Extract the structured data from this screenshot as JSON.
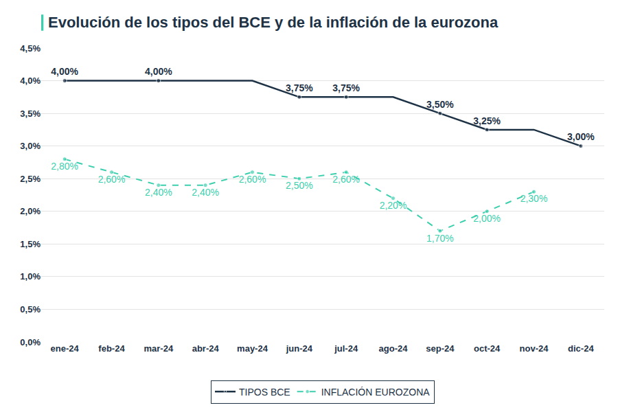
{
  "chart_data": {
    "type": "line",
    "title": "Evolución de los tipos del BCE y de la inflación de la eurozona",
    "categories": [
      "ene-24",
      "feb-24",
      "mar-24",
      "abr-24",
      "may-24",
      "jun-24",
      "jul-24",
      "ago-24",
      "sep-24",
      "oct-24",
      "nov-24",
      "dic-24"
    ],
    "series": [
      {
        "name": "TIPOS BCE",
        "color": "#1e3246",
        "line_style": "solid",
        "marker": "circle",
        "values": [
          4.0,
          4.0,
          4.0,
          4.0,
          4.0,
          3.75,
          3.75,
          3.75,
          3.5,
          3.25,
          3.25,
          3.0
        ],
        "value_labels": [
          "4,00%",
          null,
          "4,00%",
          null,
          null,
          "3,75%",
          "3,75%",
          null,
          "3,50%",
          "3,25%",
          null,
          "3,00%"
        ]
      },
      {
        "name": "INFLACIÓN EUROZONA",
        "color": "#3ccfae",
        "line_style": "dashed",
        "marker": "circle",
        "values": [
          2.8,
          2.6,
          2.4,
          2.4,
          2.6,
          2.5,
          2.6,
          2.2,
          1.7,
          2.0,
          2.3,
          null
        ],
        "value_labels": [
          "2,80%",
          "2,60%",
          "2,40%",
          "2,40%",
          "2,60%",
          "2,50%",
          "2,60%",
          "2,20%",
          "1,70%",
          "2,00%",
          "2,30%",
          null
        ]
      }
    ],
    "ylim": [
      0,
      4.5
    ],
    "yticks": [
      {
        "value": 0,
        "label": "0,0%"
      },
      {
        "value": 0.5,
        "label": "0,5%"
      },
      {
        "value": 1,
        "label": "1,0%"
      },
      {
        "value": 1.5,
        "label": "1,5%"
      },
      {
        "value": 2,
        "label": "2,0%"
      },
      {
        "value": 2.5,
        "label": "2,5%"
      },
      {
        "value": 3,
        "label": "3,0%"
      },
      {
        "value": 3.5,
        "label": "3,5%"
      },
      {
        "value": 4,
        "label": "4,0%"
      },
      {
        "value": 4.5,
        "label": "4,5%"
      }
    ],
    "grid": true,
    "data_labels": true,
    "legend": "bottom"
  }
}
